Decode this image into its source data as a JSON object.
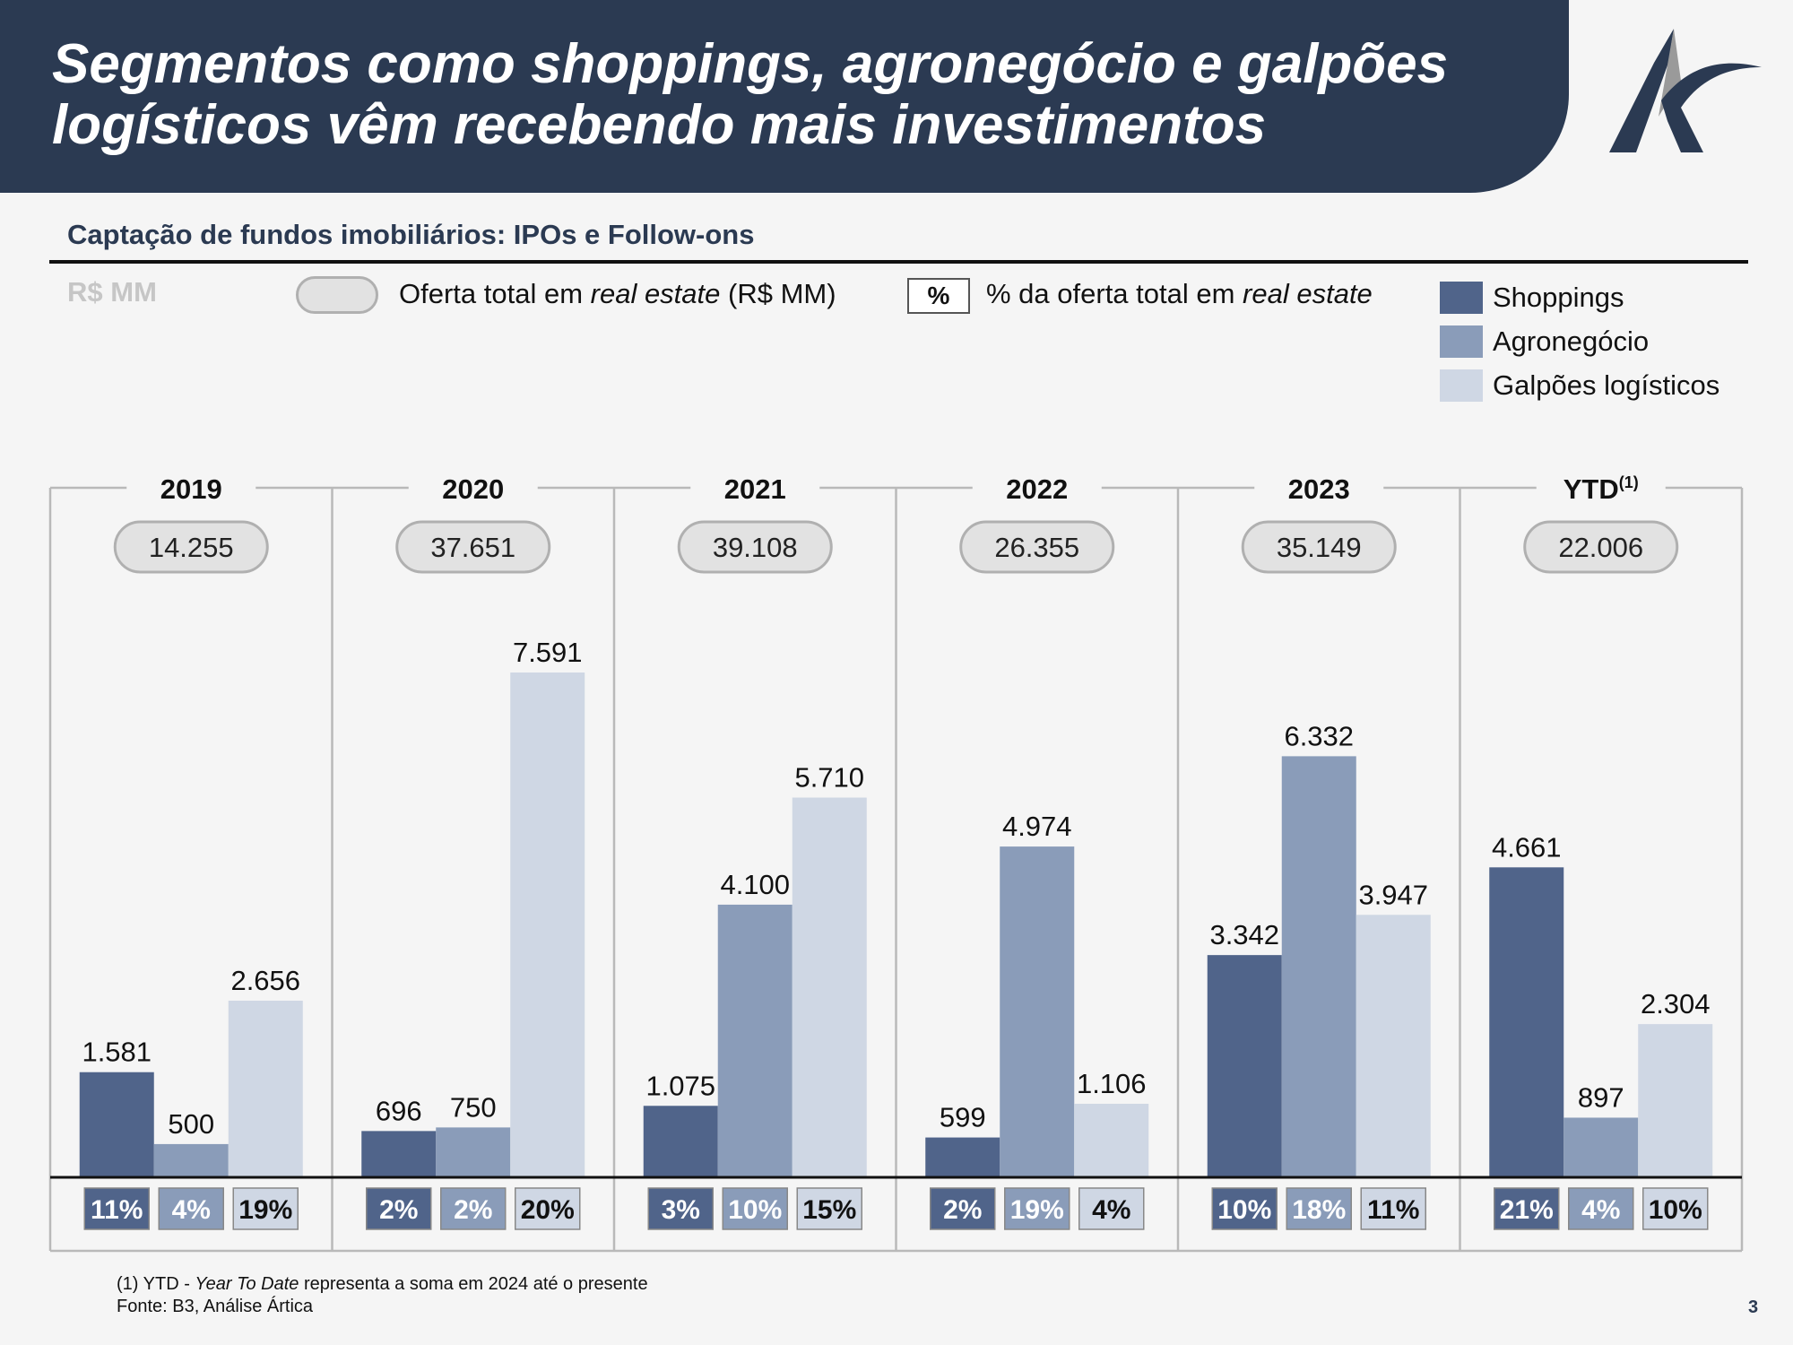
{
  "header": {
    "title": "Segmentos como shoppings, agronegócio e galpões logísticos vêm recebendo mais investimentos"
  },
  "subtitle": "Captação de fundos imobiliários: IPOs e Follow-ons",
  "unit_label": "R$ MM",
  "legend": {
    "total_label_prefix": "Oferta total em ",
    "total_label_italic": "real estate",
    "total_label_suffix": " (R$ MM)",
    "pct_symbol": "%",
    "pct_label_prefix": "% da oferta total em ",
    "pct_label_italic": "real estate"
  },
  "colors": {
    "header": "#2b3a52",
    "shoppings": "#50648a",
    "agronegocio": "#8a9cb9",
    "galpoes": "#cfd7e4"
  },
  "footnote": {
    "line1_prefix": "(1) YTD - ",
    "line1_italic": "Year To Date",
    "line1_suffix": " representa a soma em 2024 até o presente",
    "line2": "Fonte: B3, Análise Ártica"
  },
  "page_number": "3",
  "chart_data": {
    "type": "bar",
    "categories": [
      "2019",
      "2020",
      "2021",
      "2022",
      "2023",
      "YTD"
    ],
    "category_superscripts": [
      "",
      "",
      "",
      "",
      "",
      "(1)"
    ],
    "totals": [
      "14.255",
      "37.651",
      "39.108",
      "26.355",
      "35.149",
      "22.006"
    ],
    "series": [
      {
        "name": "Shoppings",
        "values": [
          1581,
          696,
          1075,
          599,
          3342,
          4661
        ],
        "labels": [
          "1.581",
          "696",
          "1.075",
          "599",
          "3.342",
          "4.661"
        ],
        "pct": [
          "11%",
          "2%",
          "3%",
          "2%",
          "10%",
          "21%"
        ],
        "color": "#50648a"
      },
      {
        "name": "Agronegócio",
        "values": [
          500,
          750,
          4100,
          4974,
          6332,
          897
        ],
        "labels": [
          "500",
          "750",
          "4.100",
          "4.974",
          "6.332",
          "897"
        ],
        "pct": [
          "4%",
          "2%",
          "10%",
          "19%",
          "18%",
          "4%"
        ],
        "color": "#8a9cb9"
      },
      {
        "name": "Galpões logísticos",
        "values": [
          2656,
          7591,
          5710,
          1106,
          3947,
          2304
        ],
        "labels": [
          "2.656",
          "7.591",
          "5.710",
          "1.106",
          "3.947",
          "2.304"
        ],
        "pct": [
          "19%",
          "20%",
          "15%",
          "4%",
          "11%",
          "10%"
        ],
        "color": "#cfd7e4"
      }
    ]
  }
}
